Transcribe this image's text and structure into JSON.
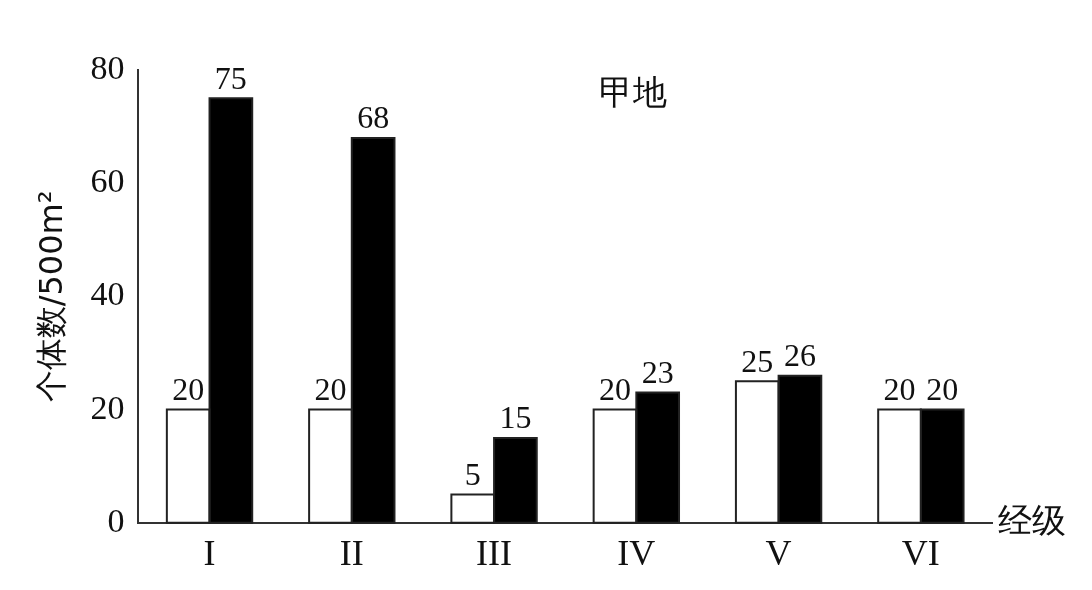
{
  "chart_data": {
    "type": "bar",
    "title": "甲地",
    "xlabel": "经级",
    "ylabel": "个体数/500m²",
    "categories": [
      "I",
      "II",
      "III",
      "IV",
      "V",
      "VI"
    ],
    "series": [
      {
        "color": "#ffffff",
        "values": [
          20,
          20,
          5,
          20,
          25,
          20
        ]
      },
      {
        "color": "#000000",
        "values": [
          75,
          68,
          15,
          23,
          26,
          20
        ]
      }
    ],
    "ylim": [
      0,
      80
    ],
    "yticks": [
      0,
      20,
      40,
      60,
      80
    ],
    "grid": false,
    "legend": false,
    "data_labels": true
  }
}
